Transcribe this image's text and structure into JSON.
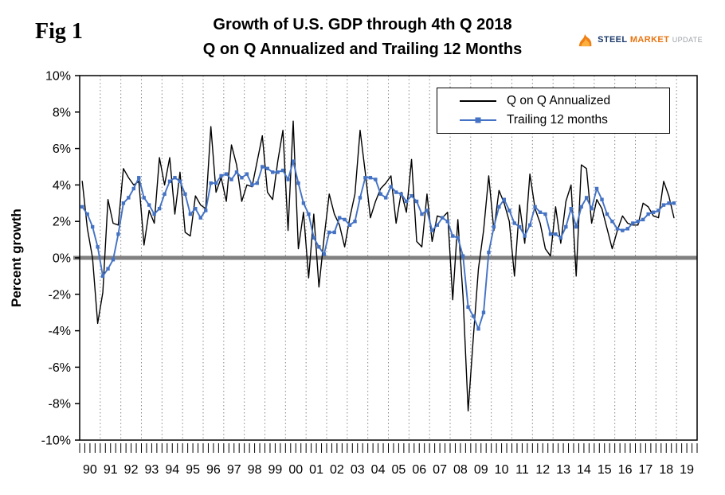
{
  "fig_label": "Fig 1",
  "title_line1": "Growth of U.S. GDP through 4th Q 2018",
  "title_line2": "Q on Q Annualized and Trailing 12 Months",
  "logo": {
    "steel": "STEEL",
    "market": "MARKET",
    "update": "UPDATE",
    "mark_color": "#f07f13"
  },
  "chart_data": {
    "type": "line",
    "title": "Growth of U.S. GDP through 4th Q 2018 — Q on Q Annualized and Trailing 12 Months",
    "xlabel": "",
    "ylabel": "Percent growth",
    "ylim": [
      -10,
      10
    ],
    "ytick_step": 2,
    "ytick_labels": [
      "10%",
      "8%",
      "6%",
      "4%",
      "2%",
      "0%",
      "-2%",
      "-4%",
      "-6%",
      "-8%",
      "-10%"
    ],
    "x_year_labels": [
      "90",
      "91",
      "92",
      "93",
      "94",
      "95",
      "96",
      "97",
      "98",
      "99",
      "00",
      "01",
      "02",
      "03",
      "04",
      "05",
      "06",
      "07",
      "08",
      "09",
      "10",
      "11",
      "12",
      "13",
      "14",
      "15",
      "16",
      "17",
      "18",
      "19"
    ],
    "frequency": "quarterly",
    "x_start": "1990 Q1",
    "x_end": "2018 Q4",
    "grid": "vertical-dotted",
    "legend_position": "top-right-inside",
    "zero_line_color": "#808080",
    "legend": [
      {
        "name": "Q on Q Annualized",
        "color": "#000000",
        "marker": "none"
      },
      {
        "name": "Trailing 12 months",
        "color": "#4472c4",
        "marker": "square"
      }
    ],
    "series": [
      {
        "name": "Q on Q Annualized",
        "values": [
          4.2,
          1.6,
          0.0,
          -3.6,
          -1.9,
          3.2,
          1.9,
          1.8,
          4.9,
          4.4,
          4.0,
          4.2,
          0.7,
          2.6,
          1.9,
          5.5,
          4.0,
          5.5,
          2.4,
          4.7,
          1.4,
          1.2,
          3.4,
          2.9,
          2.7,
          7.2,
          3.6,
          4.4,
          3.1,
          6.2,
          5.1,
          3.1,
          4.0,
          3.9,
          5.3,
          6.7,
          3.6,
          3.2,
          5.3,
          7.0,
          1.5,
          7.5,
          0.5,
          2.5,
          -1.1,
          2.4,
          -1.6,
          1.1,
          3.5,
          2.4,
          1.8,
          0.6,
          2.2,
          3.5,
          7.0,
          4.7,
          2.2,
          3.1,
          3.8,
          4.1,
          4.5,
          1.9,
          3.6,
          2.5,
          5.4,
          0.9,
          0.6,
          3.5,
          0.9,
          2.3,
          2.2,
          2.5,
          -2.3,
          2.1,
          -2.1,
          -8.4,
          -4.4,
          -0.6,
          1.5,
          4.5,
          1.5,
          3.7,
          3.0,
          2.0,
          -1.0,
          2.9,
          0.8,
          4.6,
          2.7,
          1.9,
          0.5,
          0.1,
          2.8,
          0.8,
          3.1,
          4.0,
          -1.0,
          5.1,
          4.9,
          1.9,
          3.2,
          2.7,
          1.6,
          0.5,
          1.5,
          2.3,
          1.9,
          1.8,
          1.8,
          3.0,
          2.8,
          2.3,
          2.2,
          4.2,
          3.4,
          2.2
        ]
      },
      {
        "name": "Trailing 12 months",
        "values": [
          2.8,
          2.4,
          1.7,
          0.6,
          -1.0,
          -0.6,
          -0.1,
          1.3,
          3.0,
          3.3,
          3.8,
          4.4,
          3.3,
          2.9,
          2.4,
          2.7,
          3.5,
          4.2,
          4.4,
          4.2,
          3.5,
          2.4,
          2.7,
          2.2,
          2.6,
          4.1,
          4.1,
          4.5,
          4.6,
          4.3,
          4.7,
          4.4,
          4.6,
          4.0,
          4.1,
          5.0,
          4.9,
          4.7,
          4.7,
          4.8,
          4.3,
          5.3,
          4.1,
          3.0,
          2.4,
          1.1,
          0.6,
          0.2,
          1.4,
          1.4,
          2.2,
          2.1,
          1.8,
          2.0,
          3.3,
          4.4,
          4.4,
          4.3,
          3.5,
          3.3,
          3.9,
          3.6,
          3.5,
          3.1,
          3.4,
          3.1,
          2.4,
          2.6,
          1.5,
          1.8,
          2.2,
          2.0,
          1.2,
          1.1,
          0.1,
          -2.7,
          -3.2,
          -3.9,
          -3.0,
          0.3,
          1.7,
          2.8,
          3.2,
          2.6,
          1.9,
          1.7,
          1.2,
          1.8,
          2.8,
          2.5,
          2.4,
          1.3,
          1.3,
          1.1,
          1.7,
          2.7,
          1.7,
          2.8,
          3.3,
          2.7,
          3.8,
          3.2,
          2.4,
          2.0,
          1.6,
          1.5,
          1.6,
          1.9,
          2.0,
          2.1,
          2.4,
          2.5,
          2.6,
          2.9,
          3.0,
          3.0
        ]
      }
    ]
  }
}
